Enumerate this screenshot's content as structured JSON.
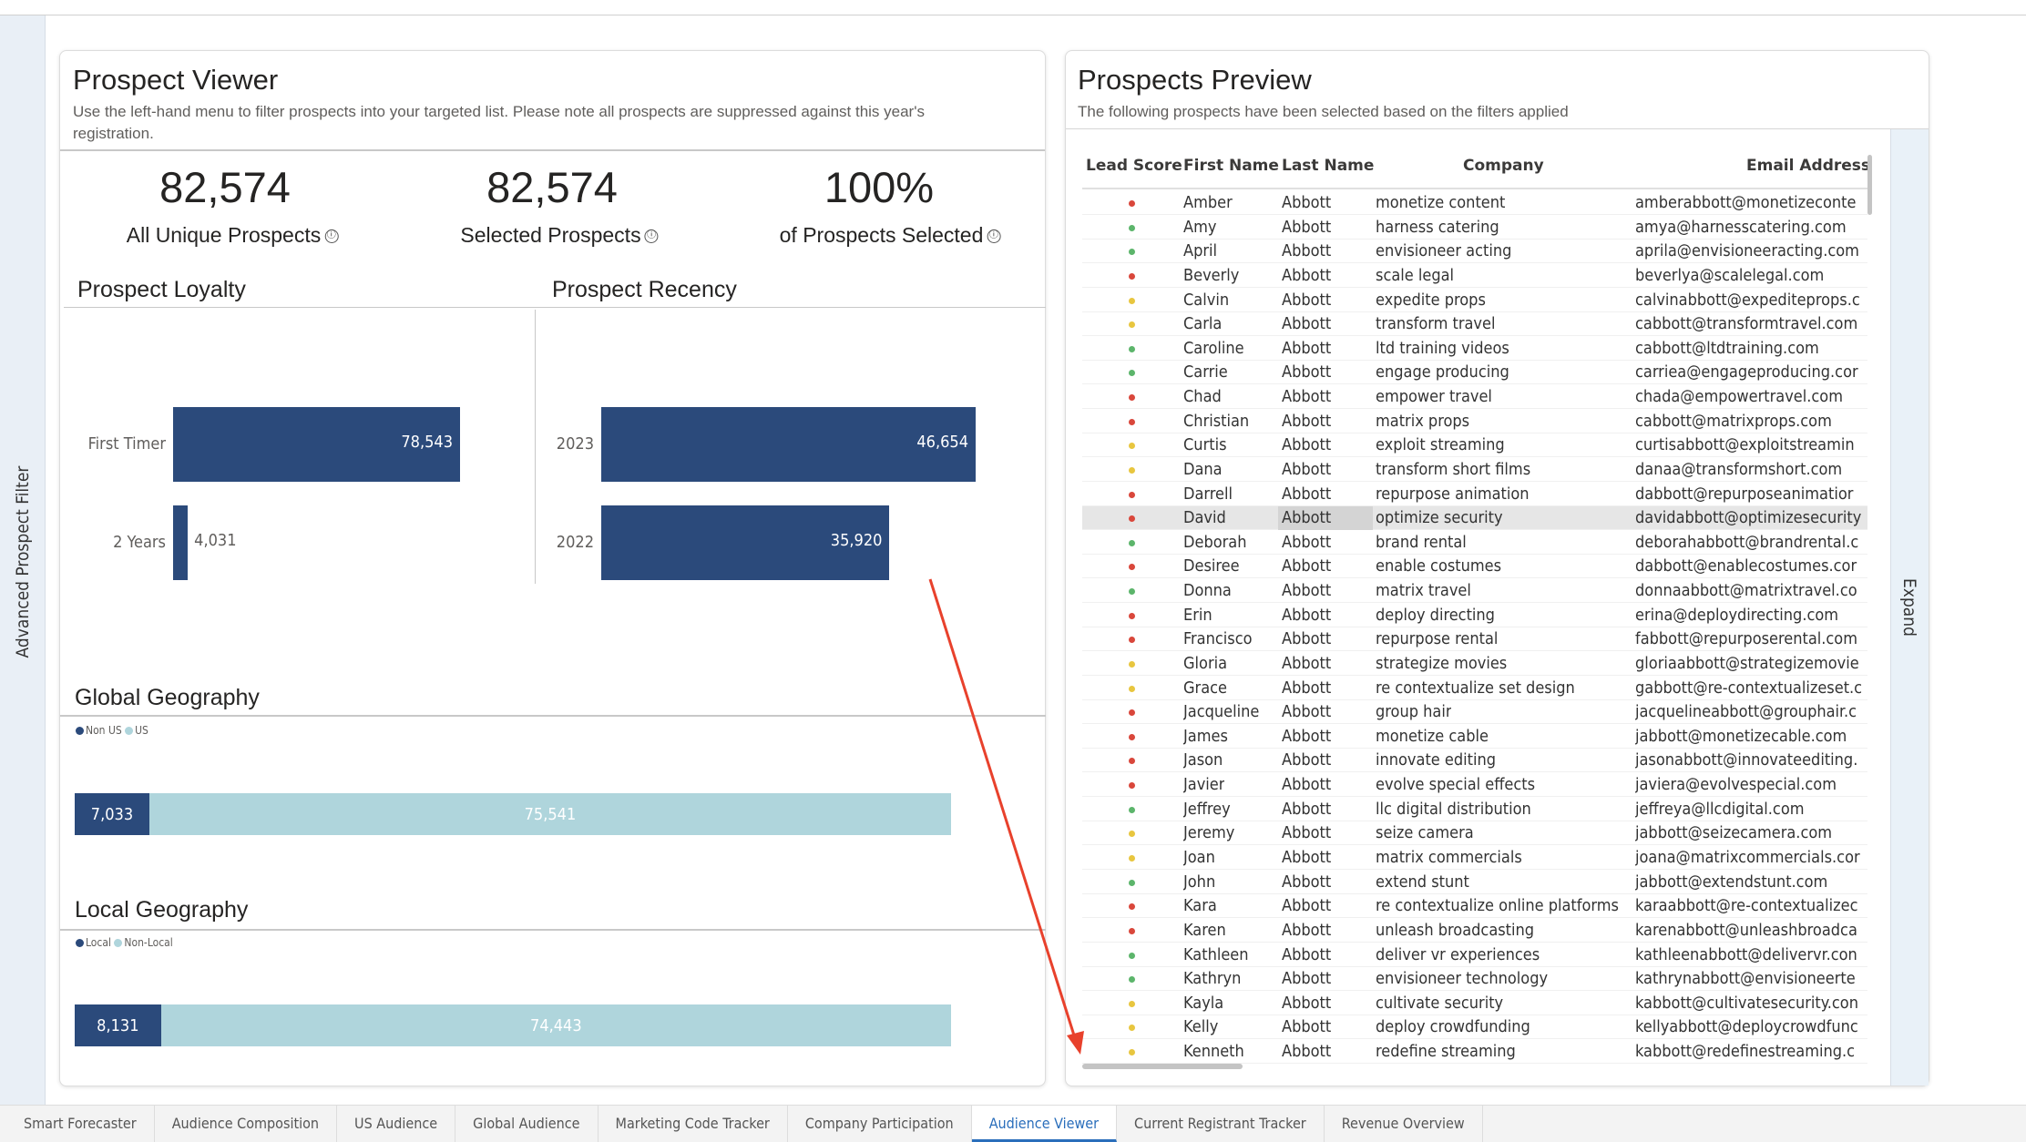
{
  "sidebar": {
    "label": "Advanced Prospect Filter"
  },
  "viewer": {
    "title": "Prospect Viewer",
    "subtitle_line1": "Use the left-hand menu to filter prospects into your targeted list. Please note all prospects are suppressed against this year's",
    "subtitle_line2": "registration.",
    "kpis": [
      {
        "value": "82,574",
        "label": "All Unique Prospects"
      },
      {
        "value": "82,574",
        "label": "Selected Prospects"
      },
      {
        "value": "100%",
        "label": "of Prospects Selected"
      }
    ],
    "info_icon": "ⓘ"
  },
  "chart_data": [
    {
      "type": "bar",
      "title": "Prospect Loyalty",
      "orientation": "horizontal",
      "categories": [
        "First Timer",
        "2 Years"
      ],
      "values": [
        78543,
        4031
      ],
      "value_labels": [
        "78,543",
        "4,031"
      ],
      "color": "#2b4a7b"
    },
    {
      "type": "bar",
      "title": "Prospect Recency",
      "orientation": "horizontal",
      "categories": [
        "2023",
        "2022"
      ],
      "values": [
        46654,
        35920
      ],
      "value_labels": [
        "46,654",
        "35,920"
      ],
      "color": "#2b4a7b"
    },
    {
      "type": "bar",
      "title": "Global Geography",
      "stacked": true,
      "legend": "top-left",
      "series": [
        {
          "name": "Non US",
          "values": [
            7033
          ],
          "label": "7,033",
          "color": "#2b4a7b"
        },
        {
          "name": "US",
          "values": [
            75541
          ],
          "label": "75,541",
          "color": "#afd5dc"
        }
      ]
    },
    {
      "type": "bar",
      "title": "Local Geography",
      "stacked": true,
      "legend": "top-left",
      "series": [
        {
          "name": "Local",
          "values": [
            8131
          ],
          "label": "8,131",
          "color": "#2b4a7b"
        },
        {
          "name": "Non-Local",
          "values": [
            74443
          ],
          "label": "74,443",
          "color": "#afd5dc"
        }
      ]
    }
  ],
  "preview": {
    "title": "Prospects Preview",
    "subtitle": "The following prospects have been selected based on the filters applied",
    "columns": [
      "Lead Score",
      "First Name",
      "Last Name",
      "Company",
      "Email Address"
    ],
    "score_colors": {
      "red": "#d9473b",
      "green": "#5cb56b",
      "yellow": "#e8c63f"
    },
    "selected_row": "David",
    "rows": [
      [
        "red",
        "Amber",
        "Abbott",
        "monetize content",
        "amberabbott@monetizeconte"
      ],
      [
        "green",
        "Amy",
        "Abbott",
        "harness catering",
        "amya@harnesscatering.com"
      ],
      [
        "green",
        "April",
        "Abbott",
        "envisioneer acting",
        "aprila@envisioneeracting.com"
      ],
      [
        "red",
        "Beverly",
        "Abbott",
        "scale legal",
        "beverlya@scalelegal.com"
      ],
      [
        "yellow",
        "Calvin",
        "Abbott",
        "expedite props",
        "calvinabbott@expediteprops.c"
      ],
      [
        "yellow",
        "Carla",
        "Abbott",
        "transform travel",
        "cabbott@transformtravel.com"
      ],
      [
        "green",
        "Caroline",
        "Abbott",
        "ltd training videos",
        "cabbott@ltdtraining.com"
      ],
      [
        "green",
        "Carrie",
        "Abbott",
        "engage producing",
        "carriea@engageproducing.cor"
      ],
      [
        "red",
        "Chad",
        "Abbott",
        "empower travel",
        "chada@empowertravel.com"
      ],
      [
        "red",
        "Christian",
        "Abbott",
        "matrix props",
        "cabbott@matrixprops.com"
      ],
      [
        "yellow",
        "Curtis",
        "Abbott",
        "exploit streaming",
        "curtisabbott@exploitstreamin"
      ],
      [
        "yellow",
        "Dana",
        "Abbott",
        "transform short films",
        "danaa@transformshort.com"
      ],
      [
        "red",
        "Darrell",
        "Abbott",
        "repurpose animation",
        "dabbott@repurposeanimatior"
      ],
      [
        "red",
        "David",
        "Abbott",
        "optimize security",
        "davidabbott@optimizesecurity"
      ],
      [
        "green",
        "Deborah",
        "Abbott",
        "brand rental",
        "deborahabbott@brandrental.c"
      ],
      [
        "red",
        "Desiree",
        "Abbott",
        "enable costumes",
        "dabbott@enablecostumes.cor"
      ],
      [
        "green",
        "Donna",
        "Abbott",
        "matrix travel",
        "donnaabbott@matrixtravel.co"
      ],
      [
        "red",
        "Erin",
        "Abbott",
        "deploy directing",
        "erina@deploydirecting.com"
      ],
      [
        "red",
        "Francisco",
        "Abbott",
        "repurpose rental",
        "fabbott@repurposerental.com"
      ],
      [
        "yellow",
        "Gloria",
        "Abbott",
        "strategize movies",
        "gloriaabbott@strategizemovie"
      ],
      [
        "yellow",
        "Grace",
        "Abbott",
        "re contextualize set design",
        "gabbott@re-contextualizeset.c"
      ],
      [
        "red",
        "Jacqueline",
        "Abbott",
        "group hair",
        "jacquelineabbott@grouphair.c"
      ],
      [
        "red",
        "James",
        "Abbott",
        "monetize cable",
        "jabbott@monetizecable.com"
      ],
      [
        "red",
        "Jason",
        "Abbott",
        "innovate editing",
        "jasonabbott@innovateediting."
      ],
      [
        "red",
        "Javier",
        "Abbott",
        "evolve special effects",
        "javiera@evolvespecial.com"
      ],
      [
        "green",
        "Jeffrey",
        "Abbott",
        "llc digital distribution",
        "jeffreya@llcdigital.com"
      ],
      [
        "yellow",
        "Jeremy",
        "Abbott",
        "seize camera",
        "jabbott@seizecamera.com"
      ],
      [
        "yellow",
        "Joan",
        "Abbott",
        "matrix commercials",
        "joana@matrixcommercials.cor"
      ],
      [
        "green",
        "John",
        "Abbott",
        "extend stunt",
        "jabbott@extendstunt.com"
      ],
      [
        "red",
        "Kara",
        "Abbott",
        "re contextualize online platforms",
        "karaabbott@re-contextualizec"
      ],
      [
        "red",
        "Karen",
        "Abbott",
        "unleash broadcasting",
        "karenabbott@unleashbroadca"
      ],
      [
        "green",
        "Kathleen",
        "Abbott",
        "deliver vr experiences",
        "kathleenabbott@delivervr.con"
      ],
      [
        "green",
        "Kathryn",
        "Abbott",
        "envisioneer technology",
        "kathrynabbott@envisioneerte"
      ],
      [
        "yellow",
        "Kayla",
        "Abbott",
        "cultivate security",
        "kabbott@cultivatesecurity.con"
      ],
      [
        "yellow",
        "Kelly",
        "Abbott",
        "deploy crowdfunding",
        "kellyabbott@deploycrowdfunc"
      ],
      [
        "yellow",
        "Kenneth",
        "Abbott",
        "redefine streaming",
        "kabbott@redefinestreaming.c"
      ]
    ],
    "expand_label": "Expand"
  },
  "tabs": [
    {
      "label": "Smart Forecaster"
    },
    {
      "label": "Audience Composition"
    },
    {
      "label": "US Audience"
    },
    {
      "label": "Global Audience"
    },
    {
      "label": "Marketing Code Tracker"
    },
    {
      "label": "Company Participation"
    },
    {
      "label": "Audience Viewer",
      "active": true
    },
    {
      "label": "Current Registrant Tracker"
    },
    {
      "label": "Revenue Overview"
    }
  ],
  "annotation": {
    "arrow_color": "#e8412c"
  }
}
